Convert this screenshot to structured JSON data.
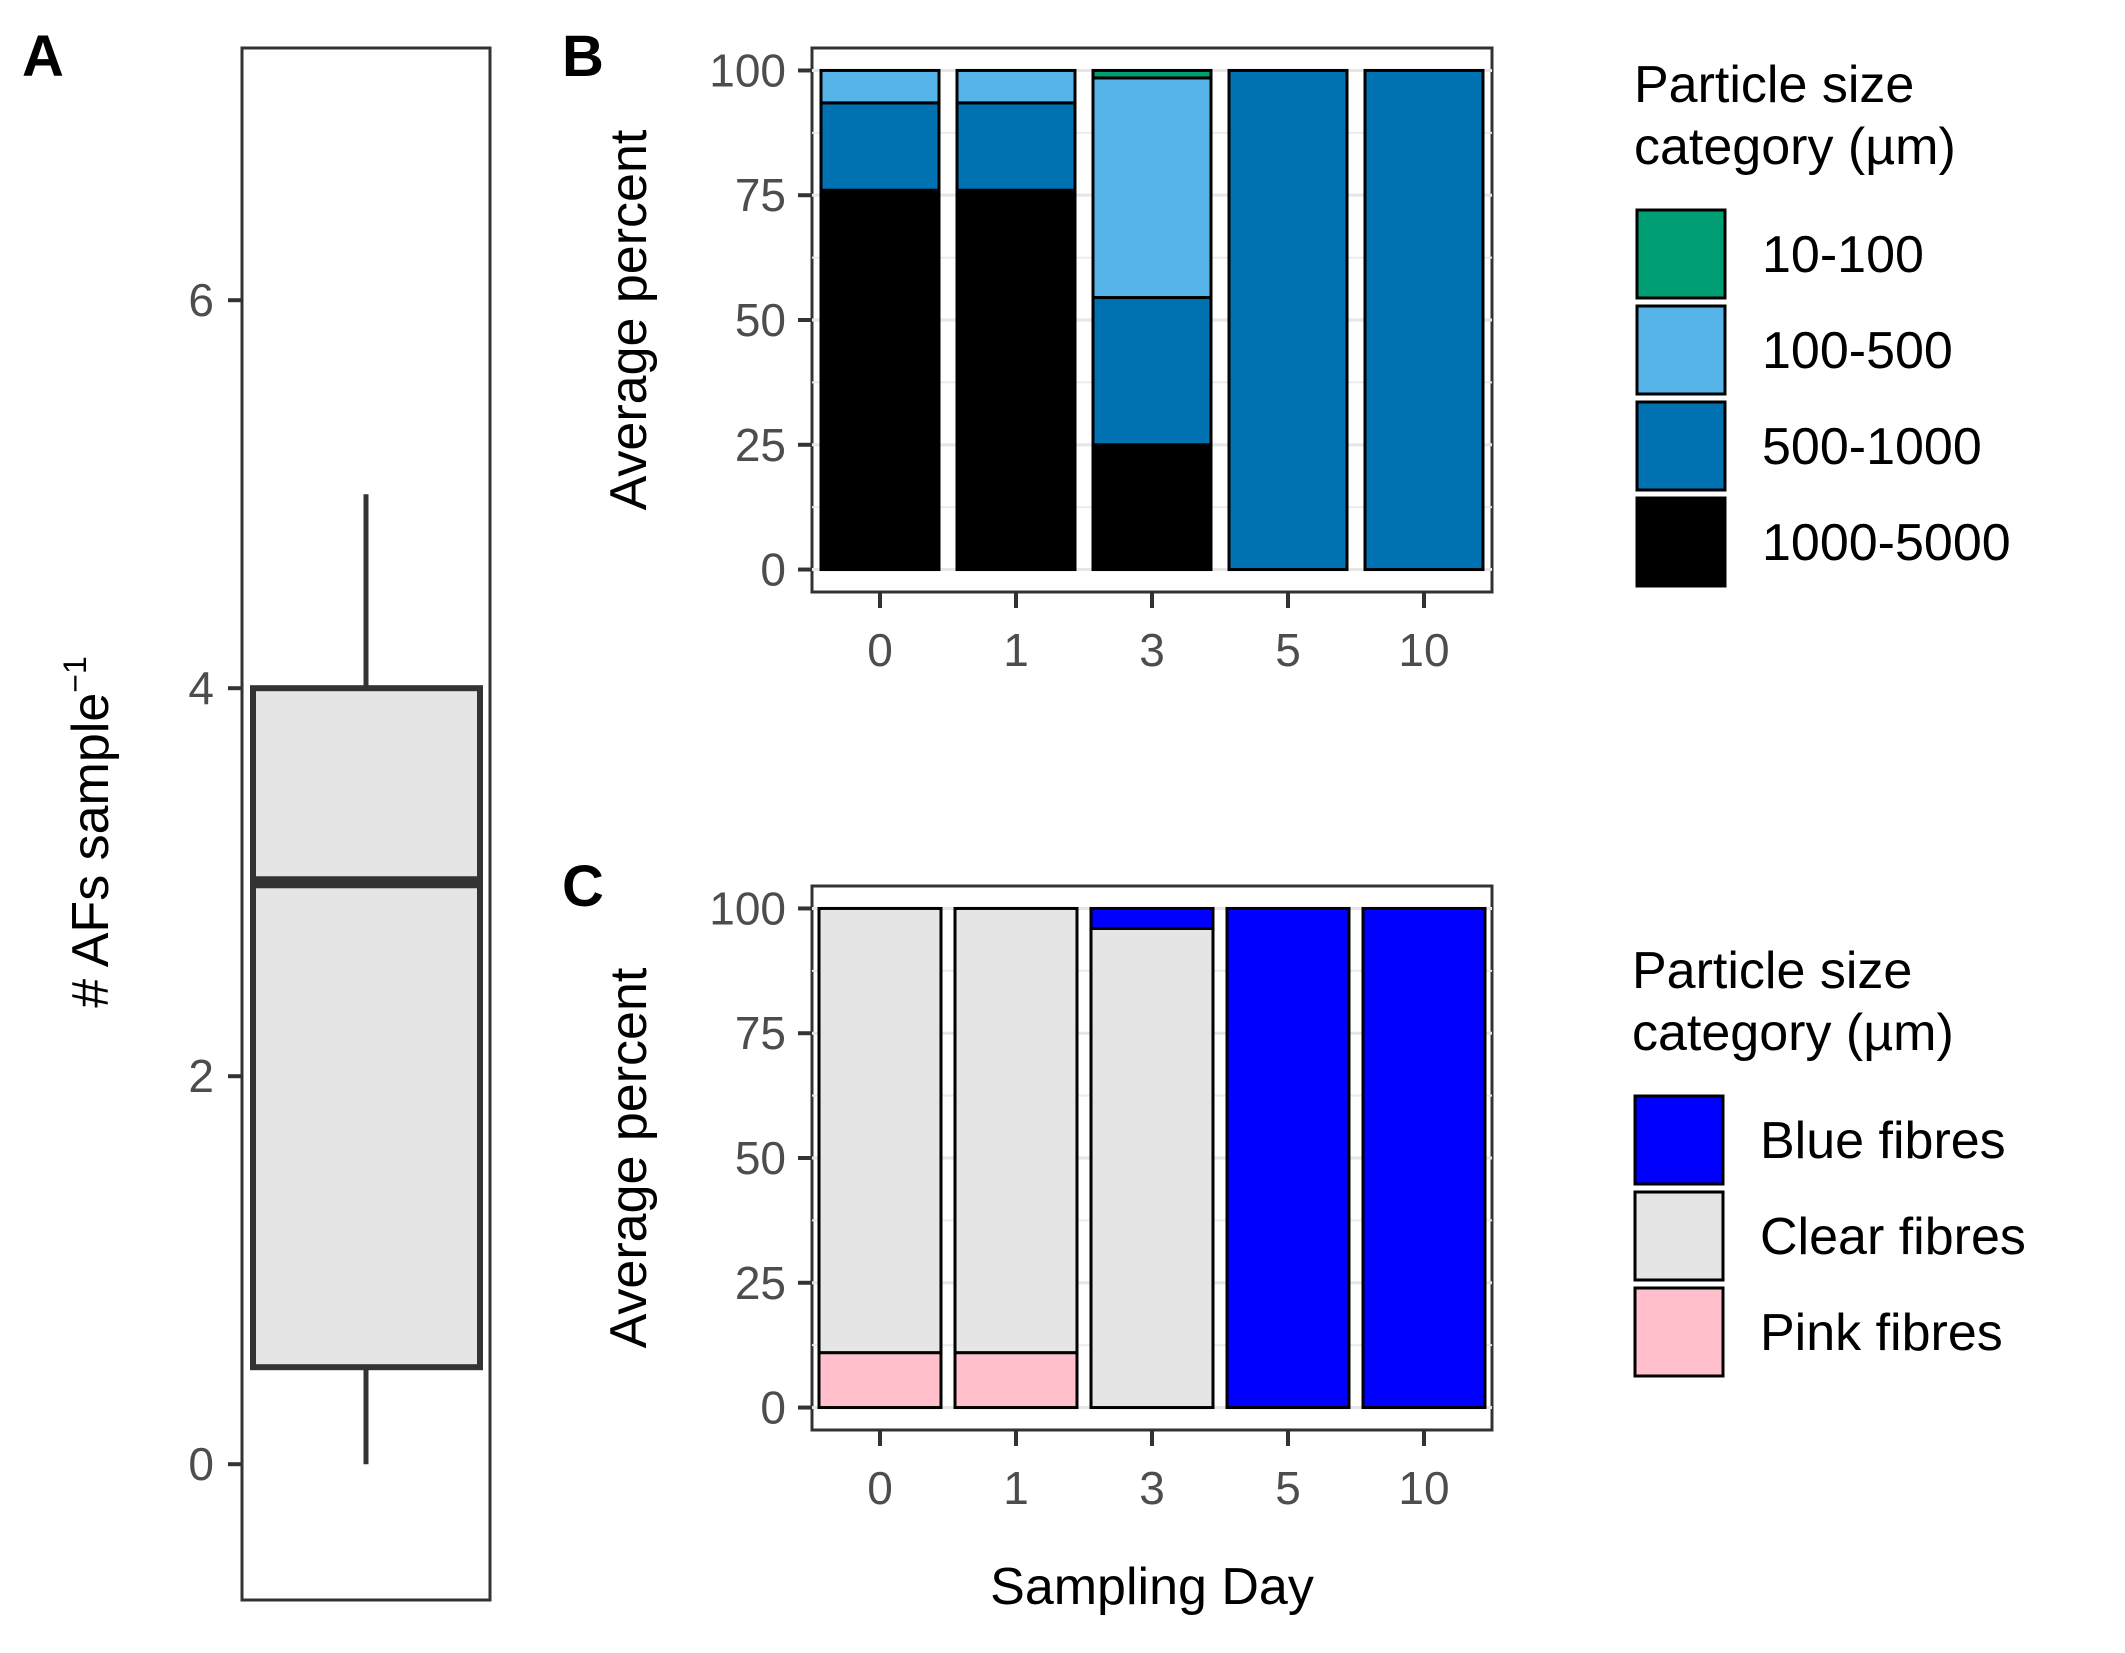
{
  "chart_data": [
    {
      "panel": "A",
      "type": "box",
      "ylabel": "# AFs sample",
      "ylabel_superscript": "−1",
      "yticks": [
        0,
        2,
        4,
        6
      ],
      "ylim": [
        -0.7,
        7.3
      ],
      "box": {
        "whisker_low": 0,
        "q1": 0.5,
        "median": 3,
        "q3": 4,
        "whisker_high": 5
      },
      "colors": {
        "box_fill": "#e5e5e5",
        "box_line": "#333333"
      }
    },
    {
      "panel": "B",
      "type": "bar",
      "stacked": true,
      "ylabel": "Average percent",
      "categories": [
        "0",
        "1",
        "3",
        "5",
        "10"
      ],
      "yticks": [
        0,
        25,
        50,
        75,
        100
      ],
      "ylim": [
        -4.5,
        104.5
      ],
      "legend_title": [
        "Particle size",
        "category (µm)"
      ],
      "series": [
        {
          "name": "1000-5000",
          "color": "#000000",
          "values": [
            76,
            76,
            25,
            0,
            0
          ]
        },
        {
          "name": "500-1000",
          "color": "#0072b2",
          "values": [
            17.5,
            17.5,
            29.5,
            100,
            100
          ]
        },
        {
          "name": "100-500",
          "color": "#56b4e9",
          "values": [
            6.5,
            6.5,
            44,
            0,
            0
          ]
        },
        {
          "name": "10-100",
          "color": "#009e73",
          "values": [
            0,
            0,
            1.5,
            0,
            0
          ]
        }
      ]
    },
    {
      "panel": "C",
      "type": "bar",
      "stacked": true,
      "ylabel": "Average percent",
      "xlabel": "Sampling Day",
      "categories": [
        "0",
        "1",
        "3",
        "5",
        "10"
      ],
      "yticks": [
        0,
        25,
        50,
        75,
        100
      ],
      "ylim": [
        -4.5,
        104.5
      ],
      "legend_title": [
        "Particle size",
        "category (µm)"
      ],
      "series": [
        {
          "name": "Pink fibres",
          "color": "#ffc0cb",
          "values": [
            11,
            11,
            0,
            0,
            0
          ]
        },
        {
          "name": "Clear fibres",
          "color": "#e5e5e5",
          "values": [
            89,
            89,
            96,
            0,
            0
          ]
        },
        {
          "name": "Blue fibres",
          "color": "#0000ff",
          "values": [
            0,
            0,
            4,
            100,
            100
          ]
        }
      ]
    }
  ]
}
